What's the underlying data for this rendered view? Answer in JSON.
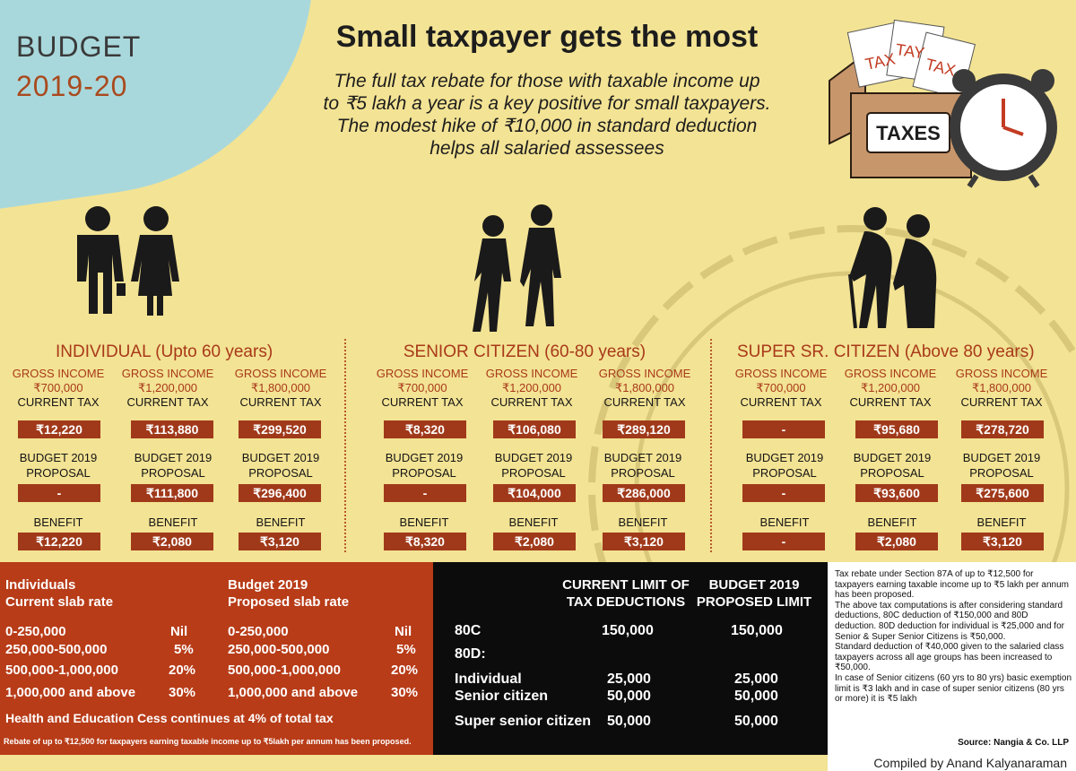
{
  "badge": {
    "word": "BUDGET",
    "year": "2019-20"
  },
  "headline": "Small taxpayer gets the most",
  "subhead": [
    "The full tax rebate for those with taxable income up",
    "to ₹5 lakh a year is a key positive for small taxpayers.",
    "The modest hike of ₹10,000 in standard deduction",
    "helps all salaried assessees"
  ],
  "illustration": {
    "box_label": "TAXES",
    "paper_labels": [
      "TAX",
      "TAY",
      "TAX"
    ]
  },
  "groups": [
    {
      "title": "INDIVIDUAL (Upto 60 years)",
      "columns": [
        {
          "gross_label": "GROSS INCOME",
          "gross_value": "₹700,000",
          "current_label": "CURRENT TAX",
          "current_tax": "₹12,220",
          "proposal_label_1": "BUDGET 2019",
          "proposal_label_2": "PROPOSAL",
          "proposal": "-",
          "benefit_label": "BENEFIT",
          "benefit": "₹12,220"
        },
        {
          "gross_label": "GROSS INCOME",
          "gross_value": "₹1,200,000",
          "current_label": "CURRENT TAX",
          "current_tax": "₹113,880",
          "proposal_label_1": "BUDGET 2019",
          "proposal_label_2": "PROPOSAL",
          "proposal": "₹111,800",
          "benefit_label": "BENEFIT",
          "benefit": "₹2,080"
        },
        {
          "gross_label": "GROSS INCOME",
          "gross_value": "₹1,800,000",
          "current_label": "CURRENT TAX",
          "current_tax": "₹299,520",
          "proposal_label_1": "BUDGET 2019",
          "proposal_label_2": "PROPOSAL",
          "proposal": "₹296,400",
          "benefit_label": "BENEFIT",
          "benefit": "₹3,120"
        }
      ]
    },
    {
      "title": "SENIOR CITIZEN (60-80 years)",
      "columns": [
        {
          "gross_label": "GROSS INCOME",
          "gross_value": "₹700,000",
          "current_label": "CURRENT TAX",
          "current_tax": "₹8,320",
          "proposal_label_1": "BUDGET 2019",
          "proposal_label_2": "PROPOSAL",
          "proposal": "-",
          "benefit_label": "BENEFIT",
          "benefit": "₹8,320"
        },
        {
          "gross_label": "GROSS INCOME",
          "gross_value": "₹1,200,000",
          "current_label": "CURRENT TAX",
          "current_tax": "₹106,080",
          "proposal_label_1": "BUDGET 2019",
          "proposal_label_2": "PROPOSAL",
          "proposal": "₹104,000",
          "benefit_label": "BENEFIT",
          "benefit": "₹2,080"
        },
        {
          "gross_label": "GROSS INCOME",
          "gross_value": "₹1,800,000",
          "current_label": "CURRENT TAX",
          "current_tax": "₹289,120",
          "proposal_label_1": "BUDGET 2019",
          "proposal_label_2": "PROPOSAL",
          "proposal": "₹286,000",
          "benefit_label": "BENEFIT",
          "benefit": "₹3,120"
        }
      ]
    },
    {
      "title": "SUPER SR. CITIZEN (Above 80 years)",
      "columns": [
        {
          "gross_label": "GROSS INCOME",
          "gross_value": "₹700,000",
          "current_label": "CURRENT TAX",
          "current_tax": "-",
          "proposal_label_1": "BUDGET 2019",
          "proposal_label_2": "PROPOSAL",
          "proposal": "-",
          "benefit_label": "BENEFIT",
          "benefit": "-"
        },
        {
          "gross_label": "GROSS INCOME",
          "gross_value": "₹1,200,000",
          "current_label": "CURRENT TAX",
          "current_tax": "₹95,680",
          "proposal_label_1": "BUDGET 2019",
          "proposal_label_2": "PROPOSAL",
          "proposal": "₹93,600",
          "benefit_label": "BENEFIT",
          "benefit": "₹2,080"
        },
        {
          "gross_label": "GROSS INCOME",
          "gross_value": "₹1,800,000",
          "current_label": "CURRENT TAX",
          "current_tax": "₹278,720",
          "proposal_label_1": "BUDGET 2019",
          "proposal_label_2": "PROPOSAL",
          "proposal": "₹275,600",
          "benefit_label": "BENEFIT",
          "benefit": "₹3,120"
        }
      ]
    }
  ],
  "slabs": {
    "left_header_1": "Individuals",
    "left_header_2": "Current slab rate",
    "right_header_1": "Budget 2019",
    "right_header_2": "Proposed slab rate",
    "rows": [
      {
        "range": "0-250,000",
        "rate": "Nil"
      },
      {
        "range": "250,000-500,000",
        "rate": "5%"
      },
      {
        "range": "500,000-1,000,000",
        "rate": "20%"
      },
      {
        "range": "1,000,000 and above",
        "rate": "30%"
      }
    ],
    "cess_note": "Health and Education Cess continues at 4% of total tax",
    "rebate_note": "Rebate of up to ₹12,500 for taxpayers earning taxable income up to ₹5lakh per annum has been proposed."
  },
  "deductions": {
    "col1_header_1": "CURRENT LIMIT OF",
    "col1_header_2": "TAX DEDUCTIONS",
    "col2_header_1": "BUDGET 2019",
    "col2_header_2": "PROPOSED LIMIT",
    "rows": [
      {
        "label": "80C",
        "current": "150,000",
        "proposed": "150,000"
      },
      {
        "label": "80D:",
        "current": "",
        "proposed": ""
      },
      {
        "label": "Individual",
        "current": "25,000",
        "proposed": "25,000"
      },
      {
        "label": "Senior citizen",
        "current": "50,000",
        "proposed": "50,000"
      },
      {
        "label": "Super senior citizen",
        "current": "50,000",
        "proposed": "50,000"
      }
    ]
  },
  "notes": {
    "paragraphs": [
      "Tax rebate under Section 87A of up to ₹12,500 for taxpayers earning taxable income up to ₹5 lakh per annum has been proposed.",
      "The above tax computations is after considering standard deductions, 80C deduction of ₹150,000 and 80D deduction. 80D deduction for individual is ₹25,000 and for Senior & Super Senior Citizens is ₹50,000.",
      "Standard deduction of ₹40,000 given to the salaried class taxpayers across all age groups has been increased to ₹50,000.",
      "In case of Senior citizens (60 yrs to 80 yrs) basic exemption limit is ₹3 lakh and in case of super senior citizens (80 yrs or more) it is ₹5 lakh"
    ],
    "source": "Source: Nangia & Co. LLP"
  },
  "credit": "Compiled by Anand Kalyanaraman",
  "colors": {
    "background": "#f3e394",
    "accent": "#a0391a",
    "badge": "#a9d8dc",
    "dark": "#0c0c0c"
  }
}
